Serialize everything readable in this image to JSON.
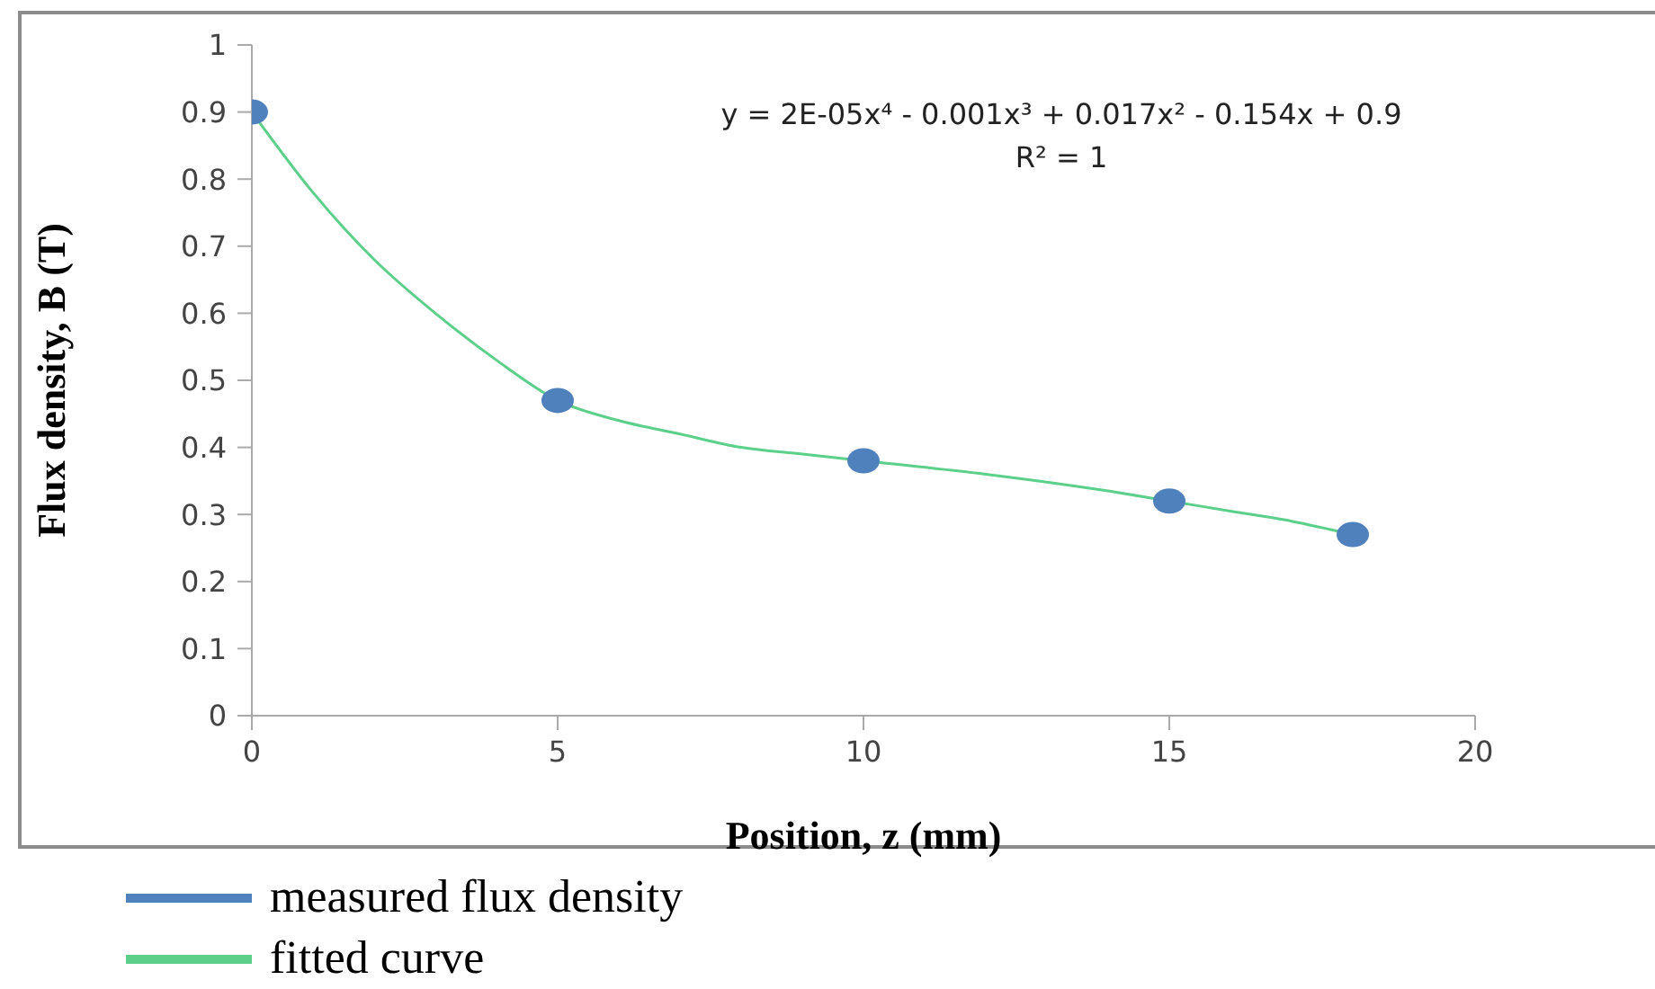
{
  "chart_data": {
    "type": "scatter",
    "xlabel": "Position, z (mm)",
    "ylabel": "Flux density, B (T)",
    "xlim": [
      0,
      20
    ],
    "xticks": [
      0,
      5,
      10,
      15,
      20
    ],
    "ylim": [
      0,
      1
    ],
    "yticks": [
      0,
      0.1,
      0.2,
      0.3,
      0.4,
      0.5,
      0.6,
      0.7,
      0.8,
      0.9,
      1
    ],
    "grid": false,
    "legend": "bottom left",
    "annotations": [
      "y = 2E-05x⁴ - 0.001x³ + 0.017x² - 0.154x + 0.9",
      "R² = 1"
    ],
    "series": [
      {
        "name": "measured flux density",
        "marker": "circle",
        "color": "#4f81bd",
        "x": [
          0,
          5,
          10,
          15,
          18
        ],
        "values": [
          0.9,
          0.47,
          0.38,
          0.32,
          0.27
        ]
      },
      {
        "name": "fitted curve",
        "type": "line",
        "marker": "none",
        "color": "#5ccf8a",
        "x": [
          0,
          1,
          2,
          3,
          4,
          5,
          6,
          7,
          8,
          9,
          10,
          12,
          14,
          15,
          16,
          17,
          18
        ],
        "values": [
          0.9,
          0.78,
          0.68,
          0.6,
          0.53,
          0.47,
          0.44,
          0.42,
          0.4,
          0.39,
          0.38,
          0.36,
          0.335,
          0.32,
          0.305,
          0.29,
          0.27
        ]
      }
    ]
  }
}
